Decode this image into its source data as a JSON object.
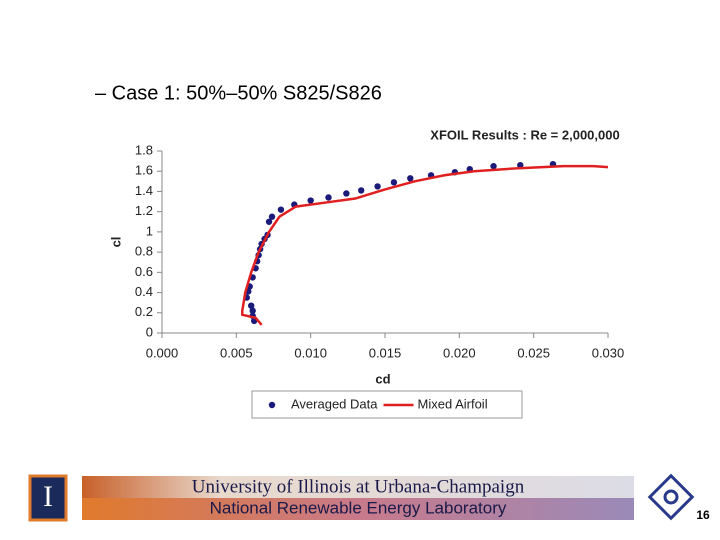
{
  "slide": {
    "bullet": "– Case 1: 50%–50% S825/S826",
    "footer_lines": [
      "University of Illinois at Urbana-Champaign",
      "National Renewable Energy Laboratory"
    ],
    "logo_letter": "I",
    "page_number": "16"
  },
  "chart_data": {
    "type": "scatter",
    "title": "XFOIL Results : Re = 2,000,000",
    "x_label": "cd",
    "y_label": "cl",
    "xlim": [
      0,
      0.03
    ],
    "xticks": [
      {
        "value": 0,
        "label": "0.000"
      },
      {
        "value": 0.005,
        "label": "0.005"
      },
      {
        "value": 0.01,
        "label": "0.010"
      },
      {
        "value": 0.015,
        "label": "0.015"
      },
      {
        "value": 0.02,
        "label": "0.020"
      },
      {
        "value": 0.025,
        "label": "0.025"
      },
      {
        "value": 0.03,
        "label": "0.030"
      }
    ],
    "ylim": [
      0,
      1.8
    ],
    "yticks": [
      0,
      0.2,
      0.4,
      0.6,
      0.8,
      1,
      1.2,
      1.4,
      1.6,
      1.8
    ],
    "grid": false,
    "legend": "bottom",
    "series": [
      {
        "name": "Averaged Data",
        "color": "#1a1a7a",
        "type": "scatter",
        "x": [
          0.0062,
          0.0061,
          0.0061,
          0.006,
          0.0057,
          0.0058,
          0.0059,
          0.0061,
          0.0063,
          0.0064,
          0.0065,
          0.0066,
          0.0067,
          0.0069,
          0.0071,
          0.0072,
          0.0074,
          0.008,
          0.0089,
          0.01,
          0.0112,
          0.0124,
          0.0134,
          0.0145,
          0.0156,
          0.0167,
          0.0181,
          0.0197,
          0.0207,
          0.0223,
          0.0241,
          0.0263
        ],
        "values": [
          0.12,
          0.17,
          0.22,
          0.27,
          0.35,
          0.41,
          0.46,
          0.55,
          0.64,
          0.71,
          0.77,
          0.83,
          0.88,
          0.93,
          0.97,
          1.1,
          1.15,
          1.22,
          1.27,
          1.31,
          1.34,
          1.38,
          1.41,
          1.45,
          1.49,
          1.53,
          1.56,
          1.59,
          1.62,
          1.65,
          1.66,
          1.67
        ]
      },
      {
        "name": "Mixed Airfoil",
        "color": "#e02020",
        "type": "line",
        "x": [
          0.0067,
          0.0063,
          0.0054,
          0.0054,
          0.0056,
          0.006,
          0.0065,
          0.0072,
          0.0079,
          0.009,
          0.011,
          0.013,
          0.015,
          0.017,
          0.019,
          0.021,
          0.024,
          0.027,
          0.029,
          0.03
        ],
        "values": [
          0.08,
          0.15,
          0.18,
          0.22,
          0.4,
          0.6,
          0.8,
          1,
          1.15,
          1.25,
          1.29,
          1.33,
          1.42,
          1.5,
          1.56,
          1.6,
          1.63,
          1.65,
          1.65,
          1.64
        ]
      }
    ]
  }
}
